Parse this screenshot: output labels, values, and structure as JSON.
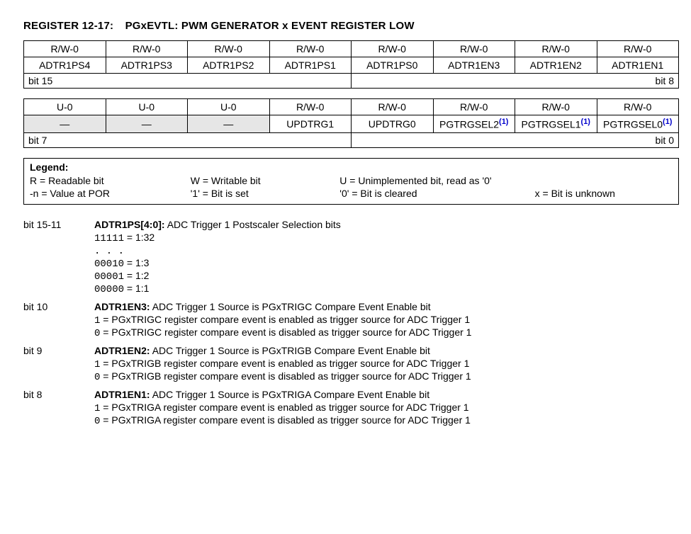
{
  "title_prefix": "REGISTER 12-17:",
  "title_main": "PGxEVTL: PWM GENERATOR x EVENT REGISTER LOW",
  "row1": {
    "access": [
      "R/W-0",
      "R/W-0",
      "R/W-0",
      "R/W-0",
      "R/W-0",
      "R/W-0",
      "R/W-0",
      "R/W-0"
    ],
    "names": [
      "ADTR1PS4",
      "ADTR1PS3",
      "ADTR1PS2",
      "ADTR1PS1",
      "ADTR1PS0",
      "ADTR1EN3",
      "ADTR1EN2",
      "ADTR1EN1"
    ],
    "left": "bit 15",
    "right": "bit 8"
  },
  "row2": {
    "access": [
      "U-0",
      "U-0",
      "U-0",
      "R/W-0",
      "R/W-0",
      "R/W-0",
      "R/W-0",
      "R/W-0"
    ],
    "names": [
      "—",
      "—",
      "—",
      "UPDTRG1",
      "UPDTRG0",
      "PGTRGSEL2",
      "PGTRGSEL1",
      "PGTRGSEL0"
    ],
    "notes": [
      "",
      "",
      "",
      "",
      "",
      "(1)",
      "(1)",
      "(1)"
    ],
    "left": "bit 7",
    "right": "bit 0"
  },
  "legend": {
    "header": "Legend:",
    "r1": {
      "c1": "R = Readable bit",
      "c2": "W = Writable bit",
      "c3": "U = Unimplemented bit, read as '0'",
      "c4": ""
    },
    "r2": {
      "c1": "-n = Value at POR",
      "c2": "'1' = Bit is set",
      "c3": "'0' = Bit is cleared",
      "c4": "x = Bit is unknown"
    }
  },
  "bits": [
    {
      "range": "bit 15-11",
      "name": "ADTR1PS[4:0]:",
      "desc": " ADC Trigger 1 Postscaler Selection bits",
      "lines": [
        {
          "code": "11111",
          "text": " = 1:32"
        },
        {
          "code": ". . .",
          "text": ""
        },
        {
          "code": "00010",
          "text": " = 1:3"
        },
        {
          "code": "00001",
          "text": " = 1:2"
        },
        {
          "code": "00000",
          "text": " = 1:1"
        }
      ]
    },
    {
      "range": "bit 10",
      "name": "ADTR1EN3:",
      "desc": " ADC Trigger 1 Source is PGxTRIGC Compare Event Enable bit",
      "lines": [
        {
          "code": "1",
          "text": " =  PGxTRIGC register compare event is enabled as trigger source for ADC Trigger 1"
        },
        {
          "code": "0",
          "text": " =  PGxTRIGC register compare event is disabled as trigger source for ADC Trigger 1"
        }
      ]
    },
    {
      "range": "bit 9",
      "name": "ADTR1EN2:",
      "desc": " ADC Trigger 1 Source is PGxTRIGB Compare Event Enable bit",
      "lines": [
        {
          "code": "1",
          "text": " =  PGxTRIGB register compare event is enabled as trigger source for ADC Trigger 1"
        },
        {
          "code": "0",
          "text": " =  PGxTRIGB register compare event is disabled as trigger source for ADC Trigger 1"
        }
      ]
    },
    {
      "range": "bit 8",
      "name": "ADTR1EN1:",
      "desc": " ADC Trigger 1 Source is PGxTRIGA Compare Event Enable bit",
      "lines": [
        {
          "code": "1",
          "text": " =  PGxTRIGA register compare event is enabled as trigger source for ADC Trigger 1"
        },
        {
          "code": "0",
          "text": " =  PGxTRIGA register compare event is disabled as trigger source for ADC Trigger 1"
        }
      ]
    }
  ]
}
